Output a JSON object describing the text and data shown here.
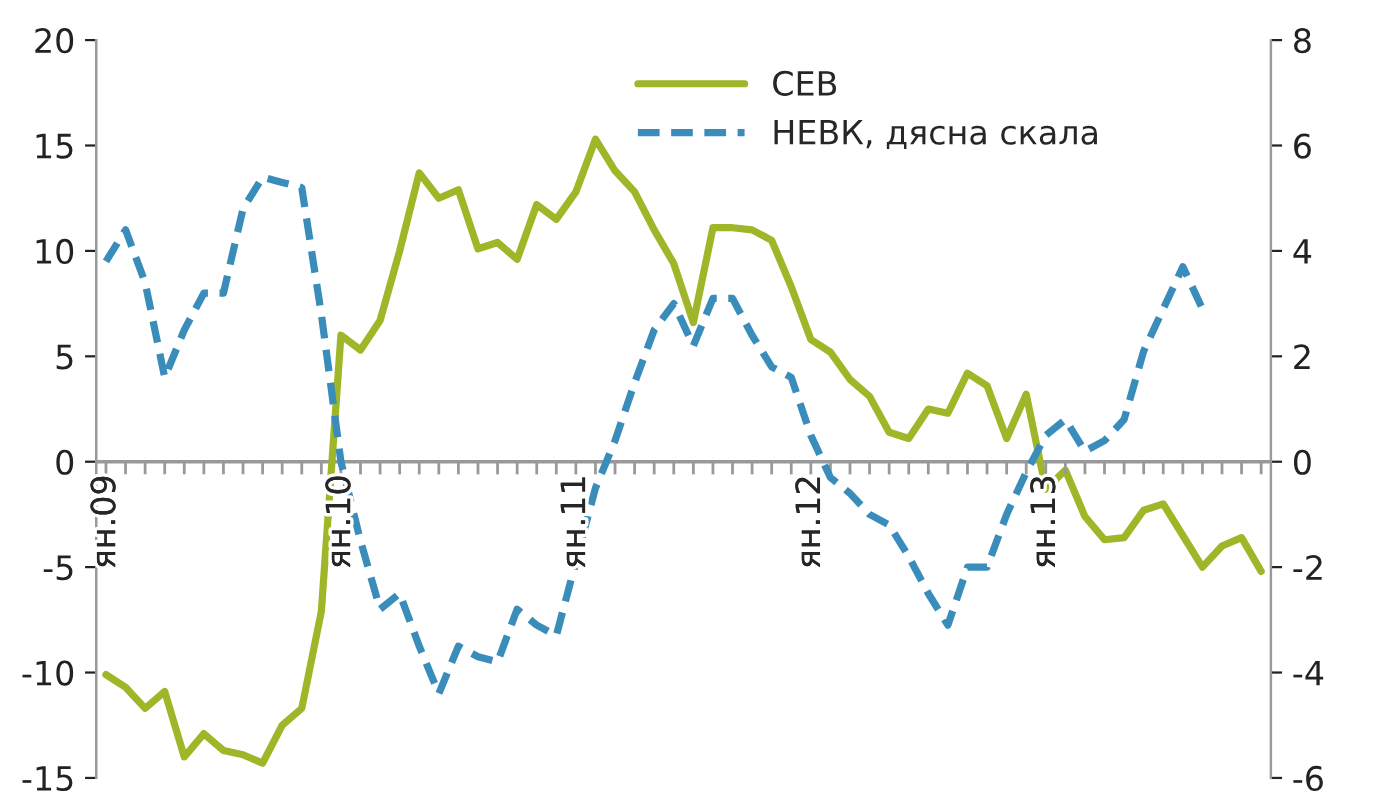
{
  "chart_data": {
    "type": "line",
    "categories": [
      "ян.09",
      null,
      null,
      null,
      null,
      null,
      null,
      null,
      null,
      null,
      null,
      null,
      "ян.10",
      null,
      null,
      null,
      null,
      null,
      null,
      null,
      null,
      null,
      null,
      null,
      "ян.11",
      null,
      null,
      null,
      null,
      null,
      null,
      null,
      null,
      null,
      null,
      null,
      "ян.12",
      null,
      null,
      null,
      null,
      null,
      null,
      null,
      null,
      null,
      null,
      null,
      "ян.13",
      null,
      null,
      null,
      null,
      null,
      null,
      null,
      null,
      null,
      null,
      null
    ],
    "series": [
      {
        "name": "СЕВ",
        "color": "#9fb628",
        "line_style": "solid",
        "values": [
          -10.1,
          -10.7,
          -11.7,
          -10.9,
          -14.0,
          -12.9,
          -13.7,
          -13.9,
          -14.3,
          -12.5,
          -11.7,
          -7.1,
          6.0,
          5.3,
          6.7,
          10.0,
          13.7,
          12.5,
          12.9,
          10.1,
          10.4,
          9.6,
          12.2,
          11.5,
          12.8,
          15.3,
          13.8,
          12.8,
          11.0,
          9.4,
          6.6,
          11.1,
          11.1,
          11.0,
          10.5,
          8.3,
          5.8,
          5.2,
          3.9,
          3.1,
          1.4,
          1.1,
          2.5,
          2.3,
          4.2,
          3.6,
          1.1,
          3.2,
          -1.3,
          -0.4,
          -2.6,
          -3.7,
          -3.6,
          -2.3,
          -2.0,
          -3.5,
          -5.0,
          -4.0,
          -3.6,
          -5.2
        ]
      },
      {
        "name": "НЕВК, дясна скала",
        "color": "#3a8dba",
        "line_style": "dashed",
        "axis": "y2",
        "values": [
          3.8,
          4.4,
          3.4,
          1.6,
          2.5,
          3.2,
          3.2,
          4.8,
          5.4,
          5.3,
          5.2,
          2.8,
          0.0,
          -1.5,
          -2.8,
          -2.5,
          -3.5,
          -4.4,
          -3.5,
          -3.7,
          -3.8,
          -2.8,
          -3.1,
          -3.3,
          -1.9,
          -0.5,
          0.4,
          1.5,
          2.5,
          3.0,
          2.2,
          3.1,
          3.1,
          2.4,
          1.8,
          1.6,
          0.5,
          -0.3,
          -0.6,
          -1.0,
          -1.2,
          -1.8,
          -2.5,
          -3.1,
          -2.0,
          -2.0,
          -1.0,
          -0.2,
          0.5,
          0.8,
          0.2,
          0.4,
          0.8,
          2.1,
          2.9,
          3.7,
          2.9,
          null,
          null,
          null
        ]
      }
    ],
    "ylim": [
      -15,
      20
    ],
    "yticks": [
      -15,
      -10,
      -5,
      0,
      5,
      10,
      15,
      20
    ],
    "y2lim": [
      -6,
      8
    ],
    "y2ticks": [
      -6,
      -4,
      -2,
      0,
      2,
      4,
      6,
      8
    ],
    "legend": "top right",
    "grid": false
  }
}
